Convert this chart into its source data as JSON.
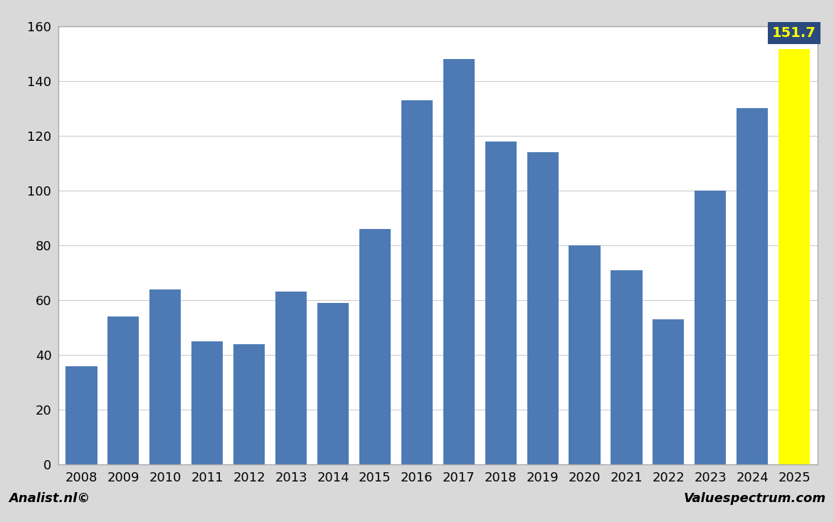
{
  "categories": [
    2008,
    2009,
    2010,
    2011,
    2012,
    2013,
    2014,
    2015,
    2016,
    2017,
    2018,
    2019,
    2020,
    2021,
    2022,
    2023,
    2024,
    2025
  ],
  "values": [
    36,
    54,
    64,
    45,
    44,
    63,
    59,
    86,
    133,
    148,
    118,
    114,
    80,
    71,
    53,
    100,
    130,
    151.7
  ],
  "bar_color_normal": "#4d7ab5",
  "bar_color_highlight": "#ffff00",
  "highlight_index": 17,
  "highlight_label": "151.7",
  "highlight_label_color": "#ffff00",
  "highlight_label_bg": "#2a4a7f",
  "ylim": [
    0,
    160
  ],
  "yticks": [
    0,
    20,
    40,
    60,
    80,
    100,
    120,
    140,
    160
  ],
  "xlabel": "",
  "ylabel": "",
  "footer_left": "Analist.nl©",
  "footer_right": "Valuespectrum.com",
  "plot_bg_color": "#ffffff",
  "footer_bg_color": "#d9d9d9",
  "outer_bg_color": "#d9d9d9",
  "grid_color": "#cccccc",
  "border_color": "#aaaaaa",
  "bar_edge_color": "none",
  "title_fontsize": 14,
  "tick_fontsize": 13,
  "footer_fontsize": 13
}
